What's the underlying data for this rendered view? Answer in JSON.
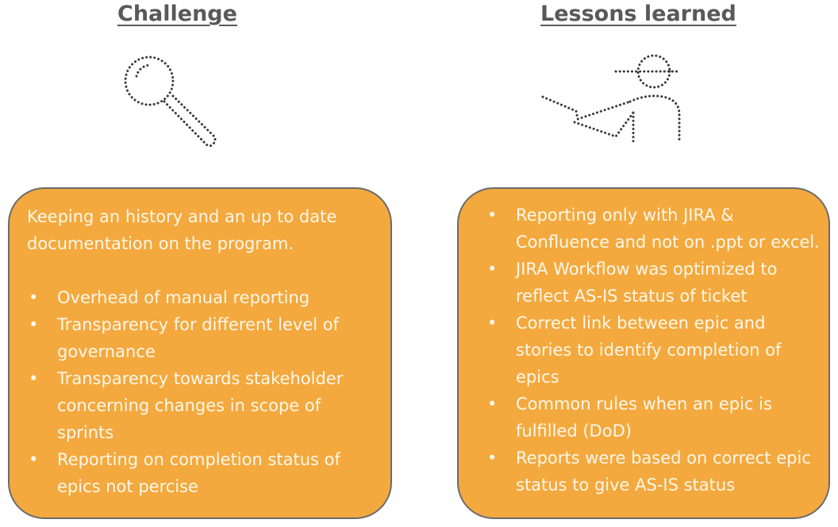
{
  "challenge": {
    "heading": "Challenge",
    "icon": "magnifying-glass-icon",
    "intro": "Keeping an history and an up to date documentation on the program.",
    "items": [
      "Overhead of manual reporting",
      "Transparency for different level of governance",
      "Transparency towards stakeholder concerning changes in scope of sprints",
      "Reporting on completion status of epics not percise"
    ]
  },
  "lessons": {
    "heading": "Lessons learned",
    "icon": "person-pointing-icon",
    "items": [
      "Reporting only with JIRA & Confluence and not on .ppt or excel.",
      "JIRA Workflow was optimized to reflect AS-IS status of ticket",
      "Correct link between epic and stories to identify completion of epics",
      "Common rules when an epic is fulfilled (DoD)",
      "Reports were based on correct epic status to give AS-IS status"
    ]
  },
  "colors": {
    "panel_fill": "#f3a93e",
    "panel_border": "#6b6b6b",
    "heading_text": "#595959",
    "panel_text": "#fff7ea"
  }
}
